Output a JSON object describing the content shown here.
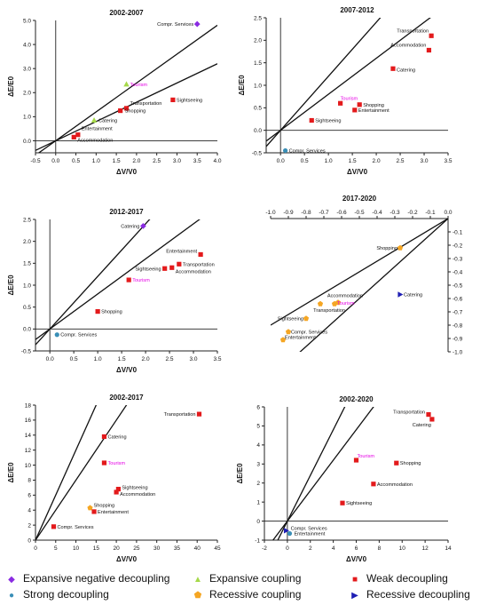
{
  "chart_data": [
    {
      "type": "scatter",
      "title": "2002-2007",
      "xlabel": "ΔV/V0",
      "ylabel": "ΔE/E0",
      "xlim": [
        -0.5,
        4.0
      ],
      "ylim": [
        -0.5,
        5.0
      ],
      "xticks": [
        "-0.5",
        "0.0",
        "0.5",
        "1.0",
        "1.5",
        "2.0",
        "2.5",
        "3.0",
        "3.5",
        "4.0"
      ],
      "yticks": [
        "0.0",
        "1.0",
        "2.0",
        "3.0",
        "4.0",
        "5.0"
      ],
      "lines": [
        {
          "slope": 1.2
        },
        {
          "slope": 0.8
        }
      ],
      "points": [
        {
          "name": "Compr. Services",
          "x": 3.5,
          "y": 4.85,
          "type": "Expansive negative decoupling"
        },
        {
          "name": "Tourism",
          "x": 1.75,
          "y": 2.35,
          "type": "Expansive coupling",
          "highlight": true
        },
        {
          "name": "Sightseeing",
          "x": 2.9,
          "y": 1.7,
          "type": "Weak decoupling"
        },
        {
          "name": "Transportation",
          "x": 1.75,
          "y": 1.35,
          "type": "Weak decoupling"
        },
        {
          "name": "Shopping",
          "x": 1.6,
          "y": 1.25,
          "type": "Weak decoupling"
        },
        {
          "name": "Catering",
          "x": 0.95,
          "y": 0.85,
          "type": "Expansive coupling"
        },
        {
          "name": "Entertainment",
          "x": 0.55,
          "y": 0.25,
          "type": "Weak decoupling"
        },
        {
          "name": "Accommodation",
          "x": 0.45,
          "y": 0.15,
          "type": "Weak decoupling"
        }
      ]
    },
    {
      "type": "scatter",
      "title": "2007-2012",
      "xlabel": "ΔV/V0",
      "ylabel": "ΔE/E0",
      "xlim": [
        -0.3,
        3.5
      ],
      "ylim": [
        -0.5,
        2.5
      ],
      "xticks": [
        "0.0",
        "0.5",
        "1.0",
        "1.5",
        "2.0",
        "2.5",
        "3.0",
        "3.5"
      ],
      "yticks": [
        "-0.5",
        "0.0",
        "0.5",
        "1.0",
        "1.5",
        "2.0",
        "2.5"
      ],
      "lines": [
        {
          "slope": 1.2
        },
        {
          "slope": 0.8
        }
      ],
      "points": [
        {
          "name": "Transportation",
          "x": 3.15,
          "y": 2.1,
          "type": "Weak decoupling"
        },
        {
          "name": "Accommodation",
          "x": 3.1,
          "y": 1.78,
          "type": "Weak decoupling"
        },
        {
          "name": "Catering",
          "x": 2.35,
          "y": 1.37,
          "type": "Weak decoupling"
        },
        {
          "name": "Tourism",
          "x": 1.25,
          "y": 0.6,
          "type": "Weak decoupling",
          "highlight": true
        },
        {
          "name": "Shopping",
          "x": 1.65,
          "y": 0.57,
          "type": "Weak decoupling"
        },
        {
          "name": "Entertainment",
          "x": 1.55,
          "y": 0.45,
          "type": "Weak decoupling"
        },
        {
          "name": "Sightseeing",
          "x": 0.65,
          "y": 0.22,
          "type": "Weak decoupling"
        },
        {
          "name": "Compr. Services",
          "x": 0.1,
          "y": -0.45,
          "type": "Strong decoupling"
        }
      ]
    },
    {
      "type": "scatter",
      "title": "2012-2017",
      "xlabel": "ΔV/V0",
      "ylabel": "ΔE/E0",
      "xlim": [
        -0.3,
        3.5
      ],
      "ylim": [
        -0.5,
        2.5
      ],
      "xticks": [
        "0.0",
        "0.5",
        "1.0",
        "1.5",
        "2.0",
        "2.5",
        "3.0",
        "3.5"
      ],
      "yticks": [
        "-0.5",
        "0.0",
        "0.5",
        "1.0",
        "1.5",
        "2.0",
        "2.5"
      ],
      "lines": [
        {
          "slope": 1.2
        },
        {
          "slope": 0.8
        }
      ],
      "points": [
        {
          "name": "Catering",
          "x": 1.95,
          "y": 2.35,
          "type": "Expansive negative decoupling"
        },
        {
          "name": "Entertainment",
          "x": 3.15,
          "y": 1.7,
          "type": "Weak decoupling"
        },
        {
          "name": "Transportation",
          "x": 2.7,
          "y": 1.48,
          "type": "Weak decoupling"
        },
        {
          "name": "Accommodation",
          "x": 2.55,
          "y": 1.4,
          "type": "Weak decoupling"
        },
        {
          "name": "Sightseeing",
          "x": 2.4,
          "y": 1.38,
          "type": "Weak decoupling"
        },
        {
          "name": "Tourism",
          "x": 1.65,
          "y": 1.12,
          "type": "Weak decoupling",
          "highlight": true
        },
        {
          "name": "Shopping",
          "x": 1.0,
          "y": 0.4,
          "type": "Weak decoupling"
        },
        {
          "name": "Compr. Services",
          "x": 0.15,
          "y": -0.13,
          "type": "Strong decoupling"
        }
      ]
    },
    {
      "type": "scatter",
      "title": "2017-2020",
      "xlabel": "",
      "ylabel": "",
      "xlim": [
        -1.0,
        0.0
      ],
      "ylim": [
        -1.0,
        0.0
      ],
      "xticks": [
        "-1.0",
        "-0.9",
        "-0.8",
        "-0.7",
        "-0.6",
        "-0.5",
        "-0.4",
        "-0.3",
        "-0.2",
        "-0.1",
        "0.0"
      ],
      "yticks": [
        "-0.1",
        "-0.2",
        "-0.3",
        "-0.4",
        "-0.5",
        "-0.6",
        "-0.7",
        "-0.8",
        "-0.9",
        "-1.0"
      ],
      "lines": [
        {
          "slope": 0.8
        },
        {
          "slope": 1.2
        }
      ],
      "points": [
        {
          "name": "Shopping",
          "x": -0.27,
          "y": -0.22,
          "type": "Recessive coupling"
        },
        {
          "name": "Catering",
          "x": -0.27,
          "y": -0.57,
          "type": "Recessive decoupling"
        },
        {
          "name": "Accommodation",
          "x": -0.62,
          "y": -0.63,
          "type": "Recessive coupling"
        },
        {
          "name": "Tourism",
          "x": -0.64,
          "y": -0.64,
          "type": "Recessive coupling",
          "highlight": true
        },
        {
          "name": "Transportation",
          "x": -0.72,
          "y": -0.64,
          "type": "Recessive coupling"
        },
        {
          "name": "Sightseeing",
          "x": -0.8,
          "y": -0.75,
          "type": "Recessive coupling"
        },
        {
          "name": "Compr. Services",
          "x": -0.9,
          "y": -0.85,
          "type": "Recessive coupling"
        },
        {
          "name": "Entertainment",
          "x": -0.93,
          "y": -0.91,
          "type": "Recessive coupling"
        }
      ]
    },
    {
      "type": "scatter",
      "title": "2002-2017",
      "xlabel": "ΔV/V0",
      "ylabel": "ΔE/E0",
      "xlim": [
        0,
        45
      ],
      "ylim": [
        0,
        18
      ],
      "xticks": [
        "0",
        "5",
        "10",
        "15",
        "20",
        "25",
        "30",
        "35",
        "40",
        "45"
      ],
      "yticks": [
        "0",
        "2",
        "4",
        "6",
        "8",
        "10",
        "12",
        "14",
        "16",
        "18"
      ],
      "lines": [
        {
          "slope": 1.2
        },
        {
          "slope": 0.8
        }
      ],
      "points": [
        {
          "name": "Transportation",
          "x": 40.5,
          "y": 16.8,
          "type": "Weak decoupling"
        },
        {
          "name": "Catering",
          "x": 17,
          "y": 13.8,
          "type": "Weak decoupling"
        },
        {
          "name": "Tourism",
          "x": 17,
          "y": 10.3,
          "type": "Weak decoupling",
          "highlight": true
        },
        {
          "name": "Sightseeing",
          "x": 20.5,
          "y": 6.8,
          "type": "Weak decoupling"
        },
        {
          "name": "Accommodation",
          "x": 20,
          "y": 6.4,
          "type": "Weak decoupling"
        },
        {
          "name": "Shopping",
          "x": 13.5,
          "y": 4.3,
          "type": "Recessive coupling"
        },
        {
          "name": "Entertainment",
          "x": 14.5,
          "y": 3.8,
          "type": "Weak decoupling"
        },
        {
          "name": "Compr. Services",
          "x": 4.5,
          "y": 1.8,
          "type": "Weak decoupling"
        }
      ]
    },
    {
      "type": "scatter",
      "title": "2002-2020",
      "xlabel": "ΔV/V0",
      "ylabel": "ΔE/E0",
      "xlim": [
        -2,
        14
      ],
      "ylim": [
        -1,
        6
      ],
      "xticks": [
        "-2",
        "0",
        "2",
        "4",
        "6",
        "8",
        "10",
        "12",
        "14"
      ],
      "yticks": [
        "-1",
        "0",
        "1",
        "2",
        "3",
        "4",
        "5",
        "6"
      ],
      "lines": [
        {
          "slope": 1.2
        },
        {
          "slope": 0.8
        }
      ],
      "points": [
        {
          "name": "Transportation",
          "x": 12.3,
          "y": 5.6,
          "type": "Weak decoupling"
        },
        {
          "name": "Catering",
          "x": 12.6,
          "y": 5.35,
          "type": "Weak decoupling"
        },
        {
          "name": "Tourism",
          "x": 6.0,
          "y": 3.2,
          "type": "Weak decoupling",
          "highlight": true
        },
        {
          "name": "Shopping",
          "x": 9.5,
          "y": 3.05,
          "type": "Weak decoupling"
        },
        {
          "name": "Accommodation",
          "x": 7.5,
          "y": 1.95,
          "type": "Weak decoupling"
        },
        {
          "name": "Sightseeing",
          "x": 4.8,
          "y": 0.95,
          "type": "Weak decoupling"
        },
        {
          "name": "Compr. Services",
          "x": -0.1,
          "y": -0.5,
          "type": "Recessive decoupling"
        },
        {
          "name": "Entertainment",
          "x": 0.2,
          "y": -0.65,
          "type": "Strong decoupling"
        }
      ]
    }
  ],
  "legend": [
    {
      "label": "Expansive negative decoupling",
      "color": "#8a2be2",
      "marker": "diamond"
    },
    {
      "label": "Expansive coupling",
      "color": "#a6d94a",
      "marker": "triangle-up"
    },
    {
      "label": "Weak decoupling",
      "color": "#e31a1c",
      "marker": "square"
    },
    {
      "label": "Strong decoupling",
      "color": "#3a8fb7",
      "marker": "circle"
    },
    {
      "label": "Recessive coupling",
      "color": "#f5a623",
      "marker": "pentagon"
    },
    {
      "label": "Recessive decoupling",
      "color": "#1f1fb4",
      "marker": "triangle-right"
    }
  ],
  "highlight_color": "#e600e6"
}
